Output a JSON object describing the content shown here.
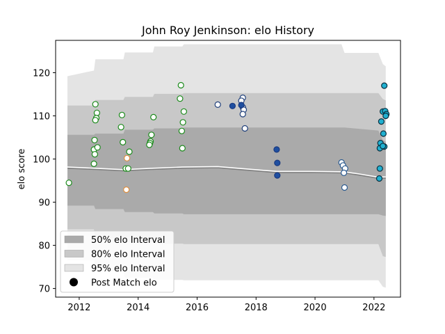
{
  "chart_data": {
    "type": "scatter",
    "title": "John Roy Jenkinson: elo History",
    "xlabel": "",
    "ylabel": "elo score",
    "xlim": [
      2011.2,
      2022.9
    ],
    "ylim": [
      68,
      127.5
    ],
    "xticks": [
      2012,
      2014,
      2016,
      2018,
      2020,
      2022
    ],
    "yticks": [
      70,
      80,
      90,
      100,
      110,
      120
    ],
    "xtick_labels": [
      "2012",
      "2014",
      "2016",
      "2018",
      "2020",
      "2022"
    ],
    "ytick_labels": [
      "70",
      "80",
      "90",
      "100",
      "110",
      "120"
    ],
    "grid": false,
    "legend_position": "lower-left",
    "legend": [
      {
        "label": "50% elo Interval",
        "kind": "band",
        "color": "#aaaaaa"
      },
      {
        "label": "80% elo Interval",
        "kind": "band",
        "color": "#c8c8c8"
      },
      {
        "label": "95% elo Interval",
        "kind": "band",
        "color": "#e4e4e4"
      },
      {
        "label": "Post Match elo",
        "kind": "marker",
        "color": "#000000"
      }
    ],
    "mean_line": {
      "x": [
        2011.6,
        2012.6,
        2013.5,
        2014.4,
        2015.5,
        2016.7,
        2017.6,
        2018.7,
        2019.9,
        2021.0,
        2021.5,
        2022.1,
        2022.4
      ],
      "y": [
        97.9,
        97.6,
        97.3,
        97.6,
        97.9,
        98.0,
        97.5,
        96.9,
        96.9,
        96.8,
        96.3,
        95.6,
        95.6
      ]
    },
    "bands": [
      {
        "name": "95% elo Interval",
        "color": "#e4e4e4",
        "x": [
          2011.6,
          2012.5,
          2012.55,
          2013.5,
          2013.55,
          2014.5,
          2014.55,
          2015.5,
          2015.55,
          2016.7,
          2017.5,
          2018.7,
          2020.9,
          2021.0,
          2022.15,
          2022.3,
          2022.4
        ],
        "upper": [
          119.2,
          120.5,
          123.1,
          123.1,
          124.7,
          124.7,
          126.1,
          126.1,
          126.6,
          126.6,
          126.6,
          126.6,
          126.6,
          124.6,
          124.6,
          122.0,
          121.5
        ],
        "lower": [
          76.6,
          76.6,
          74.0,
          74.0,
          72.5,
          72.5,
          72.0,
          72.0,
          71.9,
          71.9,
          71.9,
          71.9,
          71.9,
          71.9,
          71.9,
          70.4,
          70.2
        ]
      },
      {
        "name": "80% elo Interval",
        "color": "#c8c8c8",
        "x": [
          2011.6,
          2012.5,
          2012.55,
          2013.5,
          2013.55,
          2014.5,
          2014.55,
          2015.5,
          2015.55,
          2016.7,
          2017.5,
          2018.7,
          2020.9,
          2021.0,
          2022.15,
          2022.3,
          2022.4
        ],
        "upper": [
          112.4,
          112.4,
          113.7,
          113.7,
          114.4,
          114.4,
          115.1,
          115.1,
          115.3,
          115.3,
          115.3,
          115.3,
          115.3,
          115.3,
          115.3,
          113.9,
          113.6
        ],
        "lower": [
          83.7,
          83.7,
          81.6,
          81.6,
          80.8,
          80.8,
          80.4,
          80.4,
          80.3,
          80.3,
          80.3,
          80.3,
          80.3,
          80.3,
          80.3,
          77.5,
          77.3
        ]
      },
      {
        "name": "50% elo Interval",
        "color": "#aaaaaa",
        "x": [
          2011.6,
          2012.5,
          2012.55,
          2013.5,
          2013.55,
          2014.5,
          2014.55,
          2015.5,
          2015.55,
          2016.7,
          2017.5,
          2018.7,
          2020.9,
          2021.0,
          2022.15,
          2022.3,
          2022.4
        ],
        "upper": [
          105.6,
          105.6,
          105.9,
          105.9,
          106.8,
          106.8,
          107.1,
          107.1,
          107.3,
          107.3,
          107.3,
          107.3,
          107.3,
          107.3,
          106.6,
          104.4,
          104.0
        ],
        "lower": [
          89.2,
          89.2,
          88.4,
          88.4,
          87.7,
          87.7,
          87.4,
          87.4,
          87.2,
          87.2,
          87.2,
          87.2,
          87.2,
          87.2,
          87.2,
          86.9,
          86.8
        ]
      }
    ],
    "series": [
      {
        "fill": "#ffffff",
        "edge": "#1a8a1a",
        "points": [
          [
            2011.65,
            94.5
          ],
          [
            2012.55,
            112.7
          ],
          [
            2012.6,
            110.7
          ],
          [
            2012.58,
            109.5
          ],
          [
            2012.55,
            109.0
          ],
          [
            2012.52,
            104.4
          ],
          [
            2012.5,
            102.2
          ],
          [
            2012.62,
            102.7
          ],
          [
            2012.53,
            101.1
          ],
          [
            2012.5,
            98.9
          ],
          [
            2013.45,
            110.2
          ],
          [
            2013.42,
            107.4
          ],
          [
            2013.48,
            103.9
          ],
          [
            2013.58,
            97.8
          ],
          [
            2013.66,
            97.8
          ],
          [
            2013.7,
            101.7
          ],
          [
            2014.45,
            105.6
          ],
          [
            2014.42,
            104.1
          ],
          [
            2014.4,
            103.7
          ],
          [
            2014.38,
            103.3
          ],
          [
            2014.52,
            109.7
          ],
          [
            2015.45,
            117.1
          ],
          [
            2015.42,
            114.0
          ],
          [
            2015.55,
            111.0
          ],
          [
            2015.52,
            108.5
          ],
          [
            2015.48,
            106.5
          ],
          [
            2015.5,
            102.5
          ]
        ]
      },
      {
        "fill": "#ffffff",
        "edge": "#e09040",
        "points": [
          [
            2013.62,
            100.2
          ],
          [
            2013.6,
            92.9
          ]
        ]
      },
      {
        "fill": "#ffffff",
        "edge": "#1f3f7a",
        "points": [
          [
            2016.7,
            112.6
          ],
          [
            2017.55,
            114.2
          ],
          [
            2017.5,
            113.5
          ],
          [
            2017.55,
            112.0
          ],
          [
            2017.58,
            111.4
          ],
          [
            2017.55,
            110.4
          ],
          [
            2017.62,
            107.1
          ]
        ]
      },
      {
        "fill": "#1f4fa0",
        "edge": "#1a3a80",
        "points": [
          [
            2017.2,
            112.3
          ],
          [
            2017.5,
            112.5
          ],
          [
            2018.7,
            102.2
          ],
          [
            2018.72,
            99.1
          ],
          [
            2018.72,
            96.2
          ]
        ]
      },
      {
        "fill": "#ffffff",
        "edge": "#2a5a90",
        "points": [
          [
            2020.9,
            99.2
          ],
          [
            2020.95,
            98.5
          ],
          [
            2021.02,
            97.8
          ],
          [
            2020.98,
            96.8
          ],
          [
            2021.0,
            93.4
          ]
        ]
      },
      {
        "fill": "#20b0d0",
        "edge": "#0a3040",
        "points": [
          [
            2022.35,
            117.0
          ],
          [
            2022.3,
            111.0
          ],
          [
            2022.38,
            111.1
          ],
          [
            2022.42,
            110.4
          ],
          [
            2022.4,
            110.0
          ],
          [
            2022.25,
            108.7
          ],
          [
            2022.32,
            105.9
          ],
          [
            2022.22,
            103.7
          ],
          [
            2022.2,
            102.5
          ],
          [
            2022.35,
            102.9
          ],
          [
            2022.3,
            103.0
          ],
          [
            2022.2,
            97.8
          ],
          [
            2022.18,
            95.5
          ]
        ]
      }
    ]
  }
}
